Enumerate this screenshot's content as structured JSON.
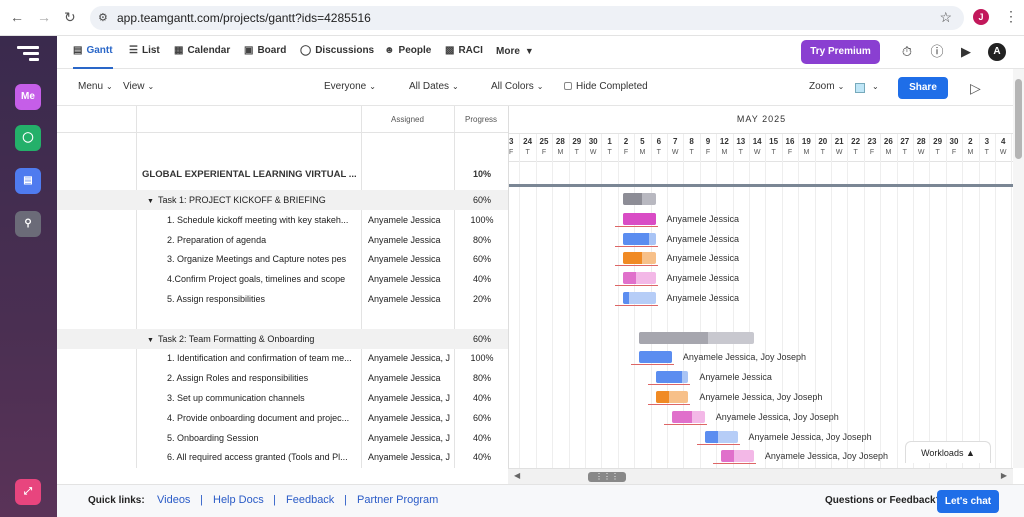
{
  "browser": {
    "url": "app.teamgantt.com/projects/gantt?ids=4285516",
    "profile_initial": "J"
  },
  "rail": {
    "me_label": "Me"
  },
  "nav": {
    "tabs": [
      {
        "label": "Gantt",
        "icon": "gantt-icon",
        "active": true
      },
      {
        "label": "List",
        "icon": "list-icon"
      },
      {
        "label": "Calendar",
        "icon": "calendar-icon"
      },
      {
        "label": "Board",
        "icon": "board-icon"
      },
      {
        "label": "Discussions",
        "icon": "discussions-icon"
      },
      {
        "label": "People",
        "icon": "people-icon"
      },
      {
        "label": "RACI",
        "icon": "raci-icon"
      },
      {
        "label": "More"
      }
    ],
    "premium_label": "Try Premium",
    "avatar_initial": "A"
  },
  "toolbar": {
    "menu": "Menu",
    "view": "View",
    "everyone": "Everyone",
    "all_dates": "All Dates",
    "all_colors": "All Colors",
    "hide_completed": "Hide Completed",
    "zoom": "Zoom",
    "share": "Share"
  },
  "grid": {
    "col_assigned": "Assigned",
    "col_progress": "Progress",
    "project_name": "GLOBAL EXPERIENTAL LEARNING VIRTUAL ...",
    "project_progress": "10%",
    "rows": [
      {
        "type": "group",
        "name": "Task 1: PROJECT KICKOFF & BRIEFING",
        "assigned": "",
        "progress": "60%"
      },
      {
        "type": "task",
        "name": "1. Schedule kickoff meeting with key stakeh...",
        "assigned": "Anyamele Jessica",
        "progress": "100%"
      },
      {
        "type": "task",
        "name": "2. Preparation of agenda",
        "assigned": "Anyamele Jessica",
        "progress": "80%"
      },
      {
        "type": "task",
        "name": "3.  Organize Meetings and Capture notes pes",
        "assigned": "Anyamele Jessica",
        "progress": "60%"
      },
      {
        "type": "task",
        "name": "4.Confirm Project goals, timelines and scope",
        "assigned": "Anyamele Jessica",
        "progress": "40%"
      },
      {
        "type": "task",
        "name": "5. Assign responsibilities",
        "assigned": "Anyamele Jessica",
        "progress": "20%"
      },
      {
        "type": "spacer"
      },
      {
        "type": "group",
        "name": "Task 2: Team Formatting & Onboarding",
        "assigned": "",
        "progress": "60%"
      },
      {
        "type": "task",
        "name": "1. Identification and confirmation of team me...",
        "assigned": "Anyamele Jessica, J",
        "progress": "100%"
      },
      {
        "type": "task",
        "name": "2. Assign Roles and responsibilities",
        "assigned": "Anyamele Jessica",
        "progress": "80%"
      },
      {
        "type": "task",
        "name": "3.  Set up communication channels",
        "assigned": "Anyamele Jessica, J",
        "progress": "40%"
      },
      {
        "type": "task",
        "name": "4. Provide onboarding document and projec...",
        "assigned": "Anyamele Jessica, J",
        "progress": "60%"
      },
      {
        "type": "task",
        "name": "5. Onboarding Session",
        "assigned": "Anyamele Jessica, J",
        "progress": "40%"
      },
      {
        "type": "task",
        "name": "6. All required access granted (Tools and Pl...",
        "assigned": "Anyamele Jessica, J",
        "progress": "40%"
      }
    ]
  },
  "gantt": {
    "month": "MAY 2025",
    "days": [
      "3",
      "24",
      "25",
      "28",
      "29",
      "30",
      "1",
      "2",
      "5",
      "6",
      "7",
      "8",
      "9",
      "12",
      "13",
      "14",
      "15",
      "16",
      "19",
      "20",
      "21",
      "22",
      "23",
      "26",
      "27",
      "28",
      "29",
      "30",
      "2",
      "3",
      "4"
    ],
    "weekdays": [
      "F",
      "T",
      "F",
      "M",
      "T",
      "W",
      "T",
      "F",
      "M",
      "T",
      "W",
      "T",
      "F",
      "M",
      "T",
      "W",
      "T",
      "F",
      "M",
      "T",
      "W",
      "T",
      "F",
      "M",
      "T",
      "W",
      "T",
      "F",
      "M",
      "T",
      "W"
    ],
    "bars": [
      {
        "row": 0,
        "start": 7.3,
        "len": 2,
        "color": "#b8b8c0",
        "fill_color": "#8d8d96",
        "progress": 0.6,
        "label": ""
      },
      {
        "row": 1,
        "start": 7.3,
        "len": 2,
        "color": "#e67ad6",
        "fill_color": "#d94cc5",
        "progress": 1.0,
        "label": "Anyamele Jessica"
      },
      {
        "row": 2,
        "start": 7.3,
        "len": 2,
        "color": "#a9c4f5",
        "fill_color": "#5b8df0",
        "progress": 0.8,
        "label": "Anyamele Jessica"
      },
      {
        "row": 3,
        "start": 7.3,
        "len": 2,
        "color": "#f7c089",
        "fill_color": "#f08a24",
        "progress": 0.6,
        "label": "Anyamele Jessica"
      },
      {
        "row": 4,
        "start": 7.3,
        "len": 2,
        "color": "#f3b8e7",
        "fill_color": "#e070cb",
        "progress": 0.4,
        "label": "Anyamele Jessica"
      },
      {
        "row": 5,
        "start": 7.3,
        "len": 2,
        "color": "#b6cdf7",
        "fill_color": "#5b8df0",
        "progress": 0.2,
        "label": "Anyamele Jessica"
      },
      {
        "row": 7,
        "start": 8.3,
        "len": 7,
        "color": "#c8c8cf",
        "fill_color": "#a6a6ae",
        "progress": 0.6,
        "label": ""
      },
      {
        "row": 8,
        "start": 8.3,
        "len": 2,
        "color": "#a9c4f5",
        "fill_color": "#5b8df0",
        "progress": 1.0,
        "label": "Anyamele Jessica, Joy Joseph"
      },
      {
        "row": 9,
        "start": 9.3,
        "len": 2,
        "color": "#a9c4f5",
        "fill_color": "#5b8df0",
        "progress": 0.8,
        "label": "Anyamele Jessica"
      },
      {
        "row": 10,
        "start": 9.3,
        "len": 2,
        "color": "#f7c089",
        "fill_color": "#f08a24",
        "progress": 0.4,
        "label": "Anyamele Jessica, Joy Joseph"
      },
      {
        "row": 11,
        "start": 10.3,
        "len": 2,
        "color": "#f3b8e7",
        "fill_color": "#e070cb",
        "progress": 0.6,
        "label": "Anyamele Jessica, Joy Joseph"
      },
      {
        "row": 12,
        "start": 12.3,
        "len": 2,
        "color": "#b6cdf7",
        "fill_color": "#5b8df0",
        "progress": 0.4,
        "label": "Anyamele Jessica, Joy Joseph"
      },
      {
        "row": 13,
        "start": 13.3,
        "len": 2,
        "color": "#f3b8e7",
        "fill_color": "#e070cb",
        "progress": 0.4,
        "label": "Anyamele Jessica, Joy Joseph"
      }
    ]
  },
  "workloads_label": "Workloads",
  "footer": {
    "quick_links": "Quick links:",
    "links": [
      "Videos",
      "Help Docs",
      "Feedback",
      "Partner Program"
    ],
    "questions": "Questions or Feedback?",
    "chat": "Let's chat"
  }
}
